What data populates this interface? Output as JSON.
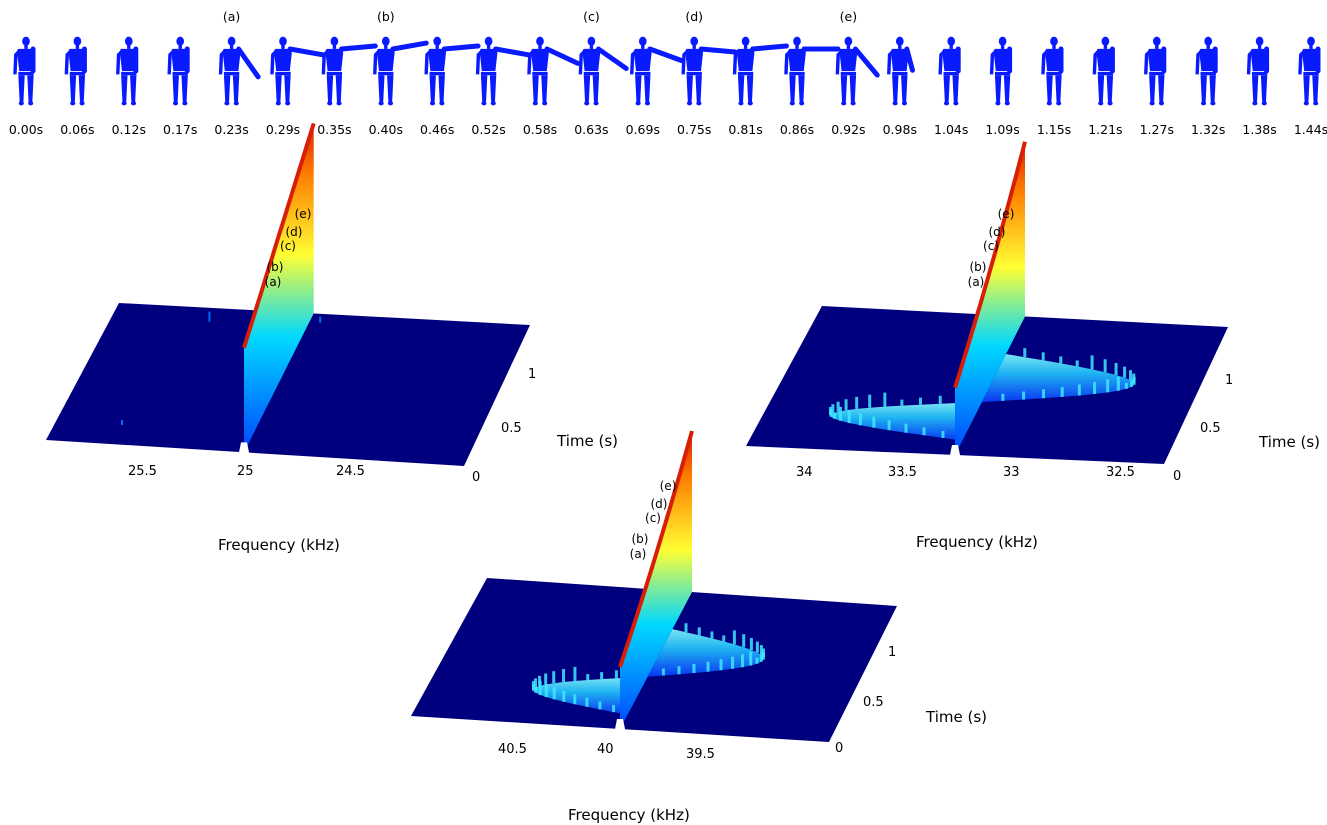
{
  "strip": {
    "times": [
      "0.00s",
      "0.06s",
      "0.12s",
      "0.17s",
      "0.23s",
      "0.29s",
      "0.35s",
      "0.40s",
      "0.46s",
      "0.52s",
      "0.58s",
      "0.63s",
      "0.69s",
      "0.75s",
      "0.81s",
      "0.86s",
      "0.92s",
      "0.98s",
      "1.04s",
      "1.09s",
      "1.15s",
      "1.21s",
      "1.27s",
      "1.32s",
      "1.38s",
      "1.44s"
    ],
    "phase_labels": [
      {
        "label": "(a)",
        "frame": 4
      },
      {
        "label": "(b)",
        "frame": 7
      },
      {
        "label": "(c)",
        "frame": 11
      },
      {
        "label": "(d)",
        "frame": 13
      },
      {
        "label": "(e)",
        "frame": 16
      }
    ],
    "arm_angles_deg": [
      0,
      0,
      0,
      0,
      35,
      80,
      95,
      100,
      95,
      80,
      65,
      55,
      70,
      85,
      95,
      90,
      40,
      15,
      0,
      0,
      0,
      0,
      0,
      0,
      0,
      0
    ],
    "figure_color": "#0a1aff"
  },
  "chart_data": [
    {
      "type": "surface",
      "panel": "left",
      "xlabel": "Frequency (kHz)",
      "ylabel": "Time (s)",
      "x_ticks": [
        25.5,
        25,
        24.5
      ],
      "xlim": [
        25.9,
        24.0
      ],
      "y_ticks": [
        0,
        0.5,
        1
      ],
      "ylim": [
        0,
        1.44
      ],
      "carrier_khz": 25.0,
      "peak_labels": [
        "(a)",
        "(b)",
        "(c)",
        "(d)",
        "(e)"
      ],
      "doppler_spread_khz": 0.0
    },
    {
      "type": "surface",
      "panel": "right",
      "xlabel": "Frequency (kHz)",
      "ylabel": "Time (s)",
      "x_ticks": [
        34,
        33.5,
        33,
        32.5
      ],
      "xlim": [
        34.4,
        32.2
      ],
      "y_ticks": [
        0,
        0.5,
        1
      ],
      "ylim": [
        0,
        1.44
      ],
      "carrier_khz": 33.3,
      "peak_labels": [
        "(a)",
        "(b)",
        "(c)",
        "(d)",
        "(e)"
      ],
      "doppler_spread_khz": 0.75
    },
    {
      "type": "surface",
      "panel": "bottom",
      "xlabel": "Frequency (kHz)",
      "ylabel": "Time (s)",
      "x_ticks": [
        40.5,
        40,
        39.5
      ],
      "xlim": [
        40.9,
        39.1
      ],
      "y_ticks": [
        0,
        0.5,
        1
      ],
      "ylim": [
        0,
        1.44
      ],
      "carrier_khz": 40.0,
      "peak_labels": [
        "(a)",
        "(b)",
        "(c)",
        "(d)",
        "(e)"
      ],
      "doppler_spread_khz": 0.45
    }
  ],
  "colors": {
    "plane": "#00007f",
    "ridge_top": "#d81e05",
    "surface_ramp": [
      "#00007f",
      "#0000ff",
      "#00ffff",
      "#ffff00",
      "#ff0000"
    ]
  }
}
